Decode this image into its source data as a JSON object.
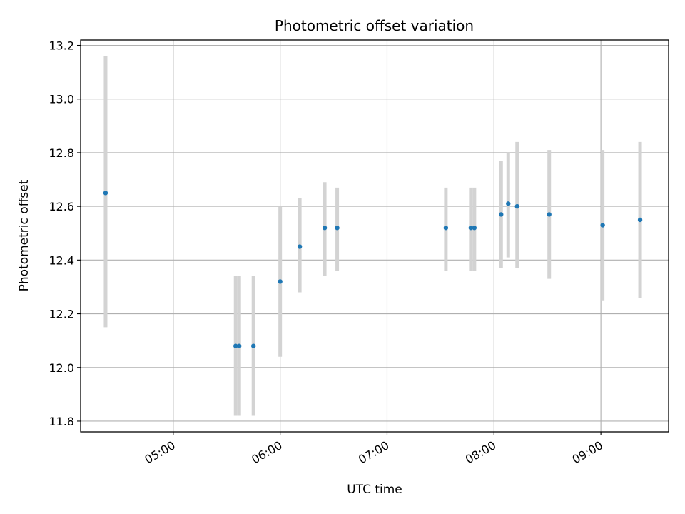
{
  "chart_data": {
    "type": "scatter",
    "title": "Photometric offset variation",
    "xlabel": "UTC time",
    "ylabel": "Photometric offset",
    "x_unit": "time of day (HH:MM, UTC)",
    "xlim": [
      "04:08",
      "09:38"
    ],
    "ylim": [
      11.76,
      13.22
    ],
    "x_ticks": [
      "05:00",
      "06:00",
      "07:00",
      "08:00",
      "09:00"
    ],
    "y_ticks": [
      11.8,
      12.0,
      12.2,
      12.4,
      12.6,
      12.8,
      13.0,
      13.2
    ],
    "y_tick_labels": [
      "11.8",
      "12.0",
      "12.2",
      "12.4",
      "12.6",
      "12.8",
      "13.0",
      "13.2"
    ],
    "grid": true,
    "colors": {
      "point": "#1f77b4",
      "errorbar": "#d3d3d3",
      "grid": "#b0b0b0",
      "axis": "#000000"
    },
    "points": [
      {
        "x": "04:22",
        "y": 12.65,
        "ylo": 12.15,
        "yhi": 13.16
      },
      {
        "x": "05:35",
        "y": 12.08,
        "ylo": 11.82,
        "yhi": 12.34
      },
      {
        "x": "05:37",
        "y": 12.08,
        "ylo": 11.82,
        "yhi": 12.34
      },
      {
        "x": "05:45",
        "y": 12.08,
        "ylo": 11.82,
        "yhi": 12.34
      },
      {
        "x": "06:00",
        "y": 12.32,
        "ylo": 12.04,
        "yhi": 12.6
      },
      {
        "x": "06:11",
        "y": 12.45,
        "ylo": 12.28,
        "yhi": 12.63
      },
      {
        "x": "06:25",
        "y": 12.52,
        "ylo": 12.34,
        "yhi": 12.69
      },
      {
        "x": "06:32",
        "y": 12.52,
        "ylo": 12.36,
        "yhi": 12.67
      },
      {
        "x": "07:33",
        "y": 12.52,
        "ylo": 12.36,
        "yhi": 12.67
      },
      {
        "x": "07:47",
        "y": 12.52,
        "ylo": 12.36,
        "yhi": 12.67
      },
      {
        "x": "07:49",
        "y": 12.52,
        "ylo": 12.36,
        "yhi": 12.67
      },
      {
        "x": "08:04",
        "y": 12.57,
        "ylo": 12.37,
        "yhi": 12.77
      },
      {
        "x": "08:08",
        "y": 12.61,
        "ylo": 12.41,
        "yhi": 12.8
      },
      {
        "x": "08:13",
        "y": 12.6,
        "ylo": 12.37,
        "yhi": 12.84
      },
      {
        "x": "08:31",
        "y": 12.57,
        "ylo": 12.33,
        "yhi": 12.81
      },
      {
        "x": "09:01",
        "y": 12.53,
        "ylo": 12.25,
        "yhi": 12.81
      },
      {
        "x": "09:22",
        "y": 12.55,
        "ylo": 12.26,
        "yhi": 12.84
      }
    ]
  }
}
